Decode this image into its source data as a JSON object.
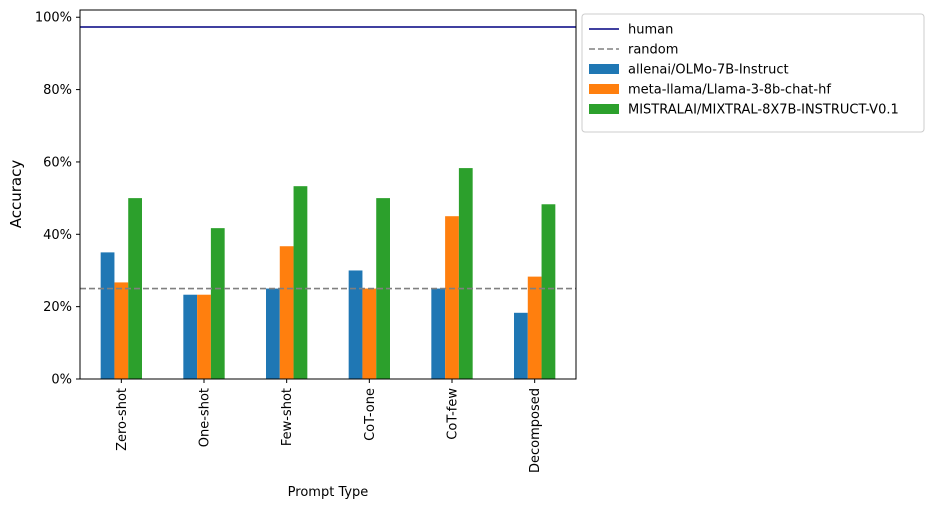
{
  "chart_data": {
    "type": "bar",
    "xlabel": "Prompt Type",
    "ylabel": "Accuracy",
    "categories": [
      "Zero-shot",
      "One-shot",
      "Few-shot",
      "CoT-one",
      "CoT-few",
      "Decomposed"
    ],
    "yticks": [
      "0%",
      "20%",
      "40%",
      "60%",
      "80%",
      "100%"
    ],
    "ylim": [
      0,
      1.02
    ],
    "grid": false,
    "legend_position": "outside top-right",
    "series": [
      {
        "name": "allenai/OLMo-7B-Instruct",
        "color": "#1f77b4",
        "values": [
          0.35,
          0.233,
          0.25,
          0.3,
          0.25,
          0.183
        ]
      },
      {
        "name": "meta-llama/Llama-3-8b-chat-hf",
        "color": "#ff7f0e",
        "values": [
          0.267,
          0.233,
          0.367,
          0.25,
          0.45,
          0.283
        ]
      },
      {
        "name": "MISTRALAI/MIXTRAL-8X7B-INSTRUCT-V0.1",
        "color": "#2ca02c",
        "values": [
          0.5,
          0.417,
          0.533,
          0.5,
          0.583,
          0.483
        ]
      }
    ],
    "reference_lines": [
      {
        "name": "human",
        "value": 0.973,
        "color": "#000080",
        "style": "solid"
      },
      {
        "name": "random",
        "value": 0.25,
        "color": "#808080",
        "style": "dashed"
      }
    ]
  }
}
